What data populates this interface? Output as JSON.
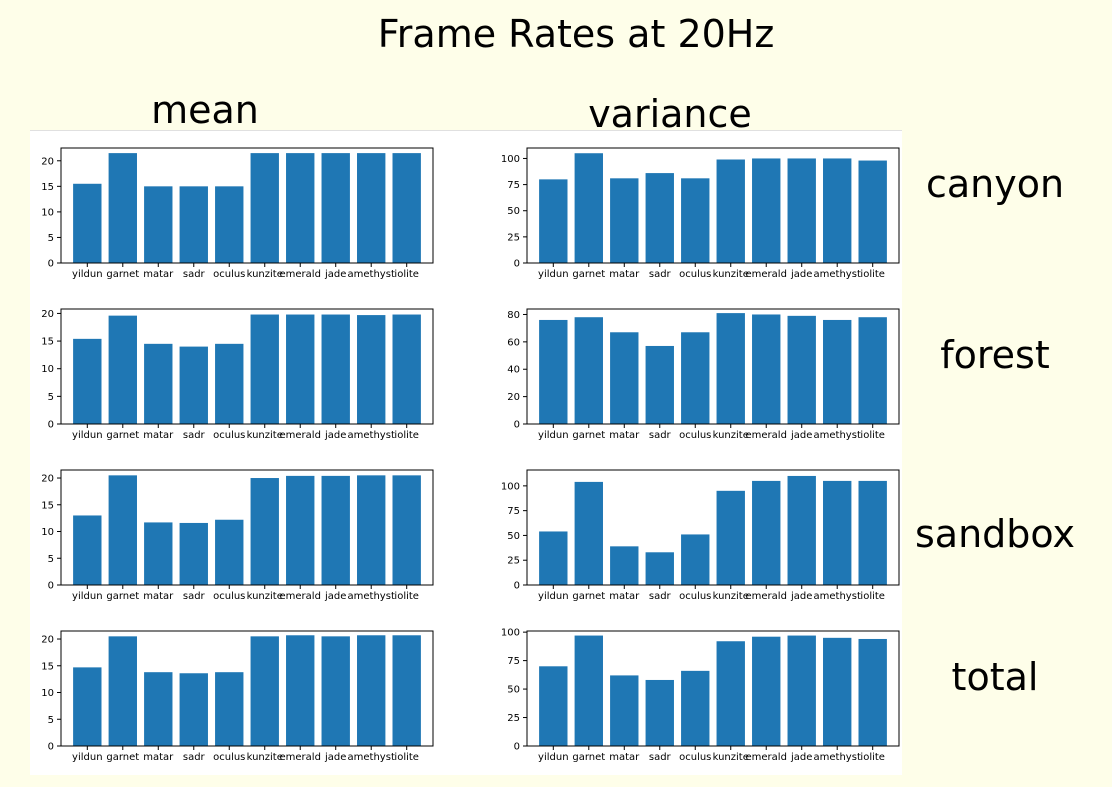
{
  "title": "Frame Rates at 20Hz",
  "column_titles": {
    "mean": "mean",
    "variance": "variance"
  },
  "row_labels": [
    "canyon",
    "forest",
    "sandbox",
    "total"
  ],
  "colors": {
    "bar": "#1f77b4",
    "background": "#fefee9"
  },
  "chart_data": [
    {
      "type": "bar",
      "row": "canyon",
      "stat": "mean",
      "categories": [
        "yildun",
        "garnet",
        "matar",
        "sadr",
        "oculus",
        "kunzite",
        "emerald",
        "jade",
        "amethyst",
        "iolite"
      ],
      "values": [
        15.5,
        21.5,
        15,
        15,
        15,
        21.5,
        21.5,
        21.5,
        21.5,
        21.5
      ],
      "ylim": [
        0,
        22.5
      ],
      "yticks": [
        "0",
        "5",
        "10",
        "15",
        "20"
      ]
    },
    {
      "type": "bar",
      "row": "canyon",
      "stat": "variance",
      "categories": [
        "yildun",
        "garnet",
        "matar",
        "sadr",
        "oculus",
        "kunzite",
        "emerald",
        "jade",
        "amethyst",
        "iolite"
      ],
      "values": [
        80,
        105,
        81,
        86,
        81,
        99,
        100,
        100,
        100,
        98
      ],
      "ylim": [
        0,
        110
      ],
      "yticks": [
        "0",
        "25",
        "50",
        "75",
        "100"
      ]
    },
    {
      "type": "bar",
      "row": "forest",
      "stat": "mean",
      "categories": [
        "yildun",
        "garnet",
        "matar",
        "sadr",
        "oculus",
        "kunzite",
        "emerald",
        "jade",
        "amethyst",
        "iolite"
      ],
      "values": [
        15.4,
        19.6,
        14.5,
        14,
        14.5,
        19.8,
        19.8,
        19.8,
        19.7,
        19.8
      ],
      "ylim": [
        0,
        20.8
      ],
      "yticks": [
        "0",
        "5",
        "10",
        "15",
        "20"
      ]
    },
    {
      "type": "bar",
      "row": "forest",
      "stat": "variance",
      "categories": [
        "yildun",
        "garnet",
        "matar",
        "sadr",
        "oculus",
        "kunzite",
        "emerald",
        "jade",
        "amethyst",
        "iolite"
      ],
      "values": [
        76,
        78,
        67,
        57,
        67,
        81,
        80,
        79,
        76,
        78
      ],
      "ylim": [
        0,
        84
      ],
      "yticks": [
        "0",
        "20",
        "40",
        "60",
        "80"
      ]
    },
    {
      "type": "bar",
      "row": "sandbox",
      "stat": "mean",
      "categories": [
        "yildun",
        "garnet",
        "matar",
        "sadr",
        "oculus",
        "kunzite",
        "emerald",
        "jade",
        "amethyst",
        "iolite"
      ],
      "values": [
        13,
        20.5,
        11.7,
        11.6,
        12.2,
        20,
        20.4,
        20.4,
        20.5,
        20.5
      ],
      "ylim": [
        0,
        21.5
      ],
      "yticks": [
        "0",
        "5",
        "10",
        "15",
        "20"
      ]
    },
    {
      "type": "bar",
      "row": "sandbox",
      "stat": "variance",
      "categories": [
        "yildun",
        "garnet",
        "matar",
        "sadr",
        "oculus",
        "kunzite",
        "emerald",
        "jade",
        "amethyst",
        "iolite"
      ],
      "values": [
        54,
        104,
        39,
        33,
        51,
        95,
        105,
        110,
        105,
        105
      ],
      "ylim": [
        0,
        116
      ],
      "yticks": [
        "0",
        "25",
        "50",
        "75",
        "100"
      ]
    },
    {
      "type": "bar",
      "row": "total",
      "stat": "mean",
      "categories": [
        "yildun",
        "garnet",
        "matar",
        "sadr",
        "oculus",
        "kunzite",
        "emerald",
        "jade",
        "amethyst",
        "iolite"
      ],
      "values": [
        14.7,
        20.5,
        13.8,
        13.6,
        13.8,
        20.5,
        20.7,
        20.5,
        20.7,
        20.7
      ],
      "ylim": [
        0,
        21.5
      ],
      "yticks": [
        "0",
        "5",
        "10",
        "15",
        "20"
      ]
    },
    {
      "type": "bar",
      "row": "total",
      "stat": "variance",
      "categories": [
        "yildun",
        "garnet",
        "matar",
        "sadr",
        "oculus",
        "kunzite",
        "emerald",
        "jade",
        "amethyst",
        "iolite"
      ],
      "values": [
        70,
        97,
        62,
        58,
        66,
        92,
        96,
        97,
        95,
        94
      ],
      "ylim": [
        0,
        101
      ],
      "yticks": [
        "0",
        "25",
        "50",
        "75",
        "100"
      ]
    }
  ]
}
